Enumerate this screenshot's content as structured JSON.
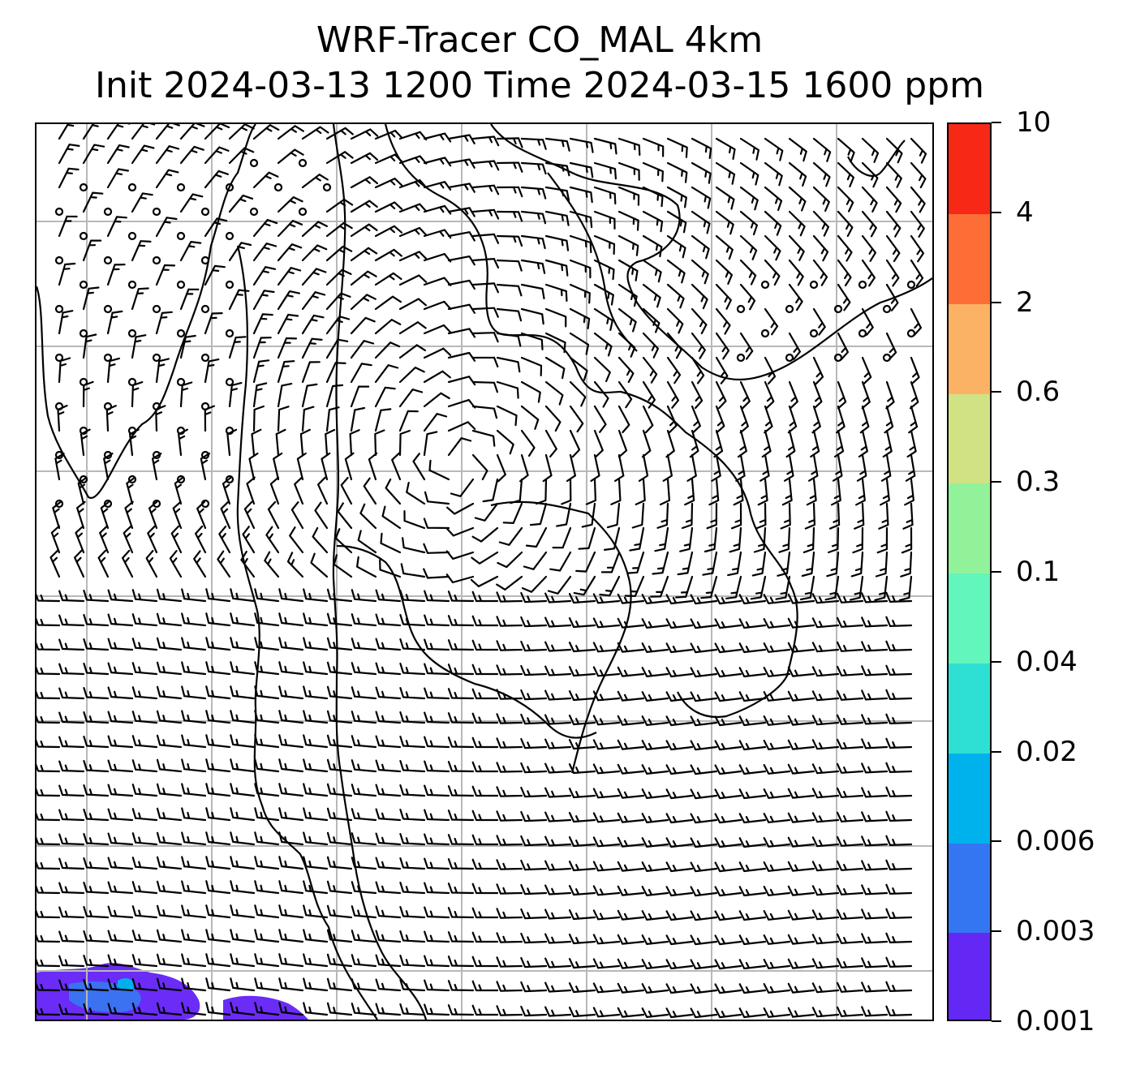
{
  "title": {
    "line1": "WRF-Tracer CO_MAL 4km",
    "line2": "Init 2024-03-13 1200 Time 2024-03-15 1600 ppm"
  },
  "map": {
    "gridlines": true,
    "gridline_color": "#b8b8b8",
    "coastline_color": "#000000",
    "barb_color": "#000000",
    "tracer_patch_colors": [
      "#6a2cf6",
      "#3a72f2",
      "#00b0ee"
    ]
  },
  "colorbar": {
    "labels": [
      "0.001",
      "0.003",
      "0.006",
      "0.02",
      "0.04",
      "0.1",
      "0.3",
      "0.6",
      "2",
      "4",
      "10"
    ],
    "colors": [
      "#6428f4",
      "#3476f2",
      "#00b2ec",
      "#2ee0d4",
      "#62f6bc",
      "#92f29a",
      "#d0e284",
      "#fcb264",
      "#fc6e36",
      "#f82816"
    ]
  }
}
